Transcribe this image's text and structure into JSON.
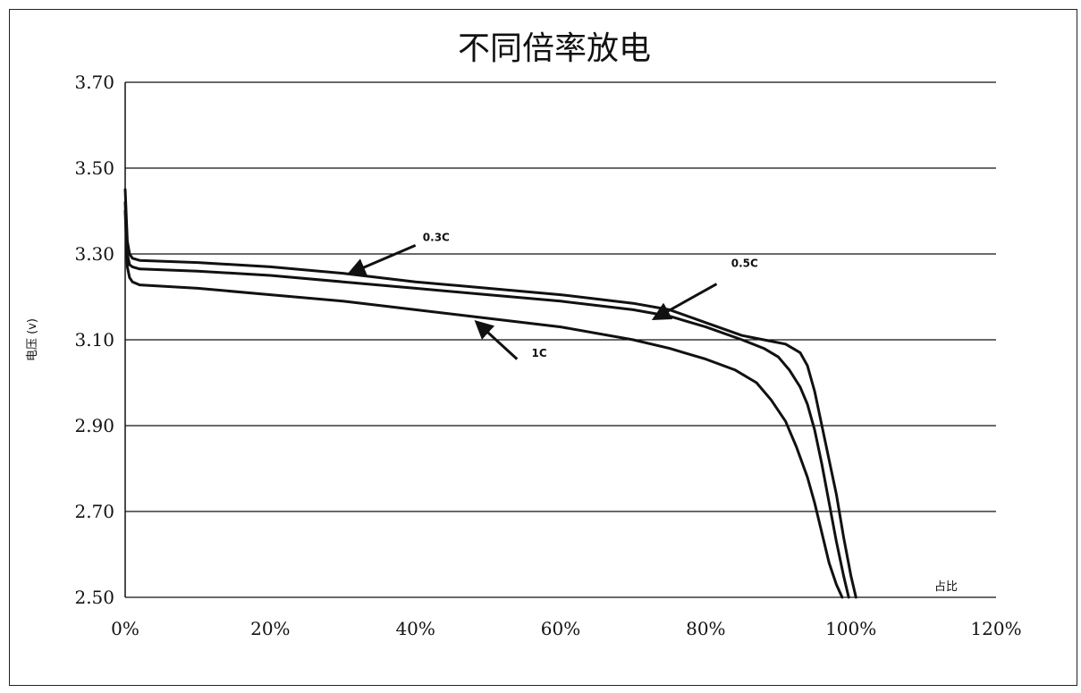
{
  "chart_data": {
    "type": "line",
    "title": "不同倍率放电",
    "xlabel": "占比",
    "ylabel": "电压 (v)",
    "xlim": [
      0,
      120
    ],
    "ylim": [
      2.5,
      3.7
    ],
    "x_tick_labels": [
      "0%",
      "20%",
      "40%",
      "60%",
      "80%",
      "100%",
      "120%"
    ],
    "x_ticks": [
      0,
      20,
      40,
      60,
      80,
      100,
      120
    ],
    "y_tick_labels": [
      "3.70",
      "3.50",
      "3.30",
      "3.10",
      "2.90",
      "2.70",
      "2.50"
    ],
    "y_ticks": [
      3.7,
      3.5,
      3.3,
      3.1,
      2.9,
      2.7,
      2.5
    ],
    "grid": "horizontal",
    "series": [
      {
        "name": "0.3C",
        "x": [
          0,
          0.3,
          0.6,
          1,
          2,
          10,
          20,
          30,
          40,
          50,
          60,
          70,
          75,
          80,
          85,
          88,
          91,
          93,
          94,
          95,
          96,
          97,
          98,
          99,
          100,
          100.7
        ],
        "y": [
          3.45,
          3.33,
          3.3,
          3.29,
          3.285,
          3.28,
          3.27,
          3.255,
          3.235,
          3.22,
          3.205,
          3.185,
          3.17,
          3.14,
          3.11,
          3.1,
          3.09,
          3.07,
          3.04,
          2.98,
          2.9,
          2.82,
          2.74,
          2.64,
          2.55,
          2.5
        ]
      },
      {
        "name": "0.5C",
        "x": [
          0,
          0.3,
          0.6,
          1,
          2,
          10,
          20,
          30,
          40,
          50,
          60,
          70,
          75,
          80,
          85,
          88,
          90,
          91.5,
          93,
          94,
          95,
          96,
          97,
          98,
          99,
          99.7
        ],
        "y": [
          3.42,
          3.3,
          3.275,
          3.27,
          3.265,
          3.26,
          3.25,
          3.235,
          3.22,
          3.205,
          3.19,
          3.17,
          3.155,
          3.13,
          3.1,
          3.08,
          3.06,
          3.03,
          2.99,
          2.95,
          2.89,
          2.81,
          2.72,
          2.63,
          2.55,
          2.5
        ]
      },
      {
        "name": "1C",
        "x": [
          0,
          0.3,
          0.6,
          1,
          2,
          10,
          20,
          30,
          40,
          50,
          60,
          70,
          75,
          80,
          84,
          87,
          89,
          91,
          92.5,
          94,
          95,
          96,
          97,
          98,
          98.8
        ],
        "y": [
          3.4,
          3.27,
          3.245,
          3.235,
          3.228,
          3.22,
          3.205,
          3.19,
          3.17,
          3.15,
          3.13,
          3.1,
          3.08,
          3.055,
          3.03,
          3.0,
          2.96,
          2.91,
          2.85,
          2.78,
          2.72,
          2.65,
          2.58,
          2.53,
          2.5
        ]
      }
    ],
    "annotations": [
      {
        "text": "0.3C",
        "label_x": 41,
        "label_y": 3.33,
        "from_x": 40,
        "from_y": 3.32,
        "to_x": 31,
        "to_y": 3.255
      },
      {
        "text": "0.5C",
        "label_x": 83.5,
        "label_y": 3.27,
        "from_x": 81.5,
        "from_y": 3.23,
        "to_x": 73,
        "to_y": 3.15
      },
      {
        "text": "1C",
        "label_x": 56,
        "label_y": 3.06,
        "from_x": 54,
        "from_y": 3.055,
        "to_x": 48.5,
        "to_y": 3.14
      }
    ]
  }
}
